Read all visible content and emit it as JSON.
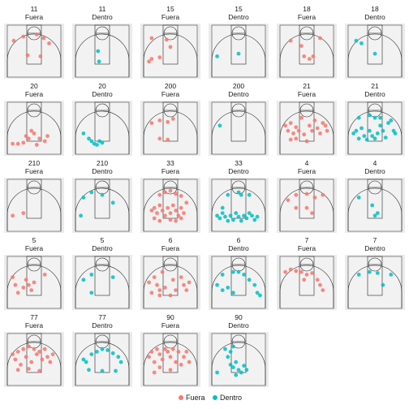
{
  "chart_data": {
    "type": "scatter",
    "title": "",
    "xlabel": "",
    "ylabel": "",
    "legend": {
      "placement": "bottom",
      "entries": [
        {
          "label": "Fuera",
          "color": "#f8766d"
        },
        {
          "label": "Dentro",
          "color": "#00bfc4"
        }
      ]
    },
    "x_range": [
      0,
      1
    ],
    "y_range": [
      0,
      1
    ],
    "grid": false,
    "panels": [
      {
        "player": "11",
        "zone": "Fuera",
        "points": [
          [
            0.12,
            0.3
          ],
          [
            0.3,
            0.22
          ],
          [
            0.55,
            0.18
          ],
          [
            0.68,
            0.25
          ],
          [
            0.78,
            0.35
          ],
          [
            0.62,
            0.6
          ],
          [
            0.38,
            0.58
          ]
        ]
      },
      {
        "player": "11",
        "zone": "Dentro",
        "points": [
          [
            0.42,
            0.5
          ],
          [
            0.44,
            0.7
          ]
        ]
      },
      {
        "player": "15",
        "zone": "Fuera",
        "points": [
          [
            0.15,
            0.25
          ],
          [
            0.43,
            0.28
          ],
          [
            0.5,
            0.42
          ],
          [
            0.15,
            0.65
          ],
          [
            0.1,
            0.7
          ],
          [
            0.3,
            0.62
          ]
        ]
      },
      {
        "player": "15",
        "zone": "Dentro",
        "points": [
          [
            0.1,
            0.6
          ],
          [
            0.5,
            0.55
          ]
        ]
      },
      {
        "player": "18",
        "zone": "Fuera",
        "points": [
          [
            0.2,
            0.3
          ],
          [
            0.4,
            0.4
          ],
          [
            0.75,
            0.25
          ],
          [
            0.45,
            0.6
          ],
          [
            0.55,
            0.65
          ],
          [
            0.62,
            0.6
          ]
        ]
      },
      {
        "player": "18",
        "zone": "Dentro",
        "points": [
          [
            0.15,
            0.3
          ],
          [
            0.25,
            0.35
          ],
          [
            0.5,
            0.55
          ]
        ]
      },
      {
        "player": "20",
        "zone": "Fuera",
        "points": [
          [
            0.1,
            0.8
          ],
          [
            0.2,
            0.8
          ],
          [
            0.3,
            0.78
          ],
          [
            0.35,
            0.65
          ],
          [
            0.4,
            0.7
          ],
          [
            0.45,
            0.55
          ],
          [
            0.5,
            0.6
          ],
          [
            0.55,
            0.82
          ],
          [
            0.6,
            0.7
          ],
          [
            0.7,
            0.75
          ],
          [
            0.75,
            0.65
          ]
        ]
      },
      {
        "player": "20",
        "zone": "Dentro",
        "points": [
          [
            0.15,
            0.6
          ],
          [
            0.25,
            0.7
          ],
          [
            0.3,
            0.75
          ],
          [
            0.35,
            0.8
          ],
          [
            0.4,
            0.82
          ],
          [
            0.45,
            0.75
          ],
          [
            0.5,
            0.78
          ]
        ]
      },
      {
        "player": "200",
        "zone": "Fuera",
        "points": [
          [
            0.15,
            0.4
          ],
          [
            0.3,
            0.35
          ],
          [
            0.45,
            0.38
          ],
          [
            0.55,
            0.32
          ],
          [
            0.3,
            0.7
          ],
          [
            0.45,
            0.72
          ]
        ]
      },
      {
        "player": "200",
        "zone": "Dentro",
        "points": [
          [
            0.15,
            0.45
          ]
        ]
      },
      {
        "player": "21",
        "zone": "Fuera",
        "points": [
          [
            0.1,
            0.45
          ],
          [
            0.15,
            0.55
          ],
          [
            0.2,
            0.4
          ],
          [
            0.25,
            0.6
          ],
          [
            0.3,
            0.48
          ],
          [
            0.35,
            0.55
          ],
          [
            0.4,
            0.3
          ],
          [
            0.45,
            0.62
          ],
          [
            0.5,
            0.75
          ],
          [
            0.55,
            0.45
          ],
          [
            0.6,
            0.55
          ],
          [
            0.65,
            0.35
          ],
          [
            0.7,
            0.5
          ],
          [
            0.75,
            0.6
          ],
          [
            0.8,
            0.4
          ],
          [
            0.85,
            0.45
          ],
          [
            0.88,
            0.55
          ],
          [
            0.3,
            0.7
          ],
          [
            0.2,
            0.72
          ]
        ]
      },
      {
        "player": "21",
        "zone": "Dentro",
        "points": [
          [
            0.1,
            0.6
          ],
          [
            0.15,
            0.55
          ],
          [
            0.2,
            0.7
          ],
          [
            0.25,
            0.5
          ],
          [
            0.3,
            0.65
          ],
          [
            0.35,
            0.72
          ],
          [
            0.4,
            0.55
          ],
          [
            0.45,
            0.65
          ],
          [
            0.5,
            0.7
          ],
          [
            0.55,
            0.6
          ],
          [
            0.6,
            0.45
          ],
          [
            0.65,
            0.55
          ],
          [
            0.7,
            0.68
          ],
          [
            0.75,
            0.4
          ],
          [
            0.8,
            0.35
          ],
          [
            0.85,
            0.55
          ],
          [
            0.88,
            0.6
          ],
          [
            0.2,
            0.3
          ],
          [
            0.4,
            0.25
          ],
          [
            0.5,
            0.3
          ],
          [
            0.6,
            0.3
          ]
        ]
      },
      {
        "player": "210",
        "zone": "Fuera",
        "points": [
          [
            0.1,
            0.7
          ],
          [
            0.3,
            0.65
          ]
        ]
      },
      {
        "player": "210",
        "zone": "Dentro",
        "points": [
          [
            0.15,
            0.35
          ],
          [
            0.3,
            0.25
          ],
          [
            0.5,
            0.3
          ],
          [
            0.7,
            0.45
          ],
          [
            0.1,
            0.7
          ]
        ]
      },
      {
        "player": "33",
        "zone": "Fuera",
        "points": [
          [
            0.15,
            0.6
          ],
          [
            0.2,
            0.55
          ],
          [
            0.25,
            0.65
          ],
          [
            0.3,
            0.5
          ],
          [
            0.35,
            0.6
          ],
          [
            0.4,
            0.7
          ],
          [
            0.45,
            0.55
          ],
          [
            0.5,
            0.65
          ],
          [
            0.55,
            0.5
          ],
          [
            0.6,
            0.6
          ],
          [
            0.65,
            0.7
          ],
          [
            0.7,
            0.55
          ],
          [
            0.75,
            0.65
          ],
          [
            0.3,
            0.3
          ],
          [
            0.4,
            0.25
          ],
          [
            0.5,
            0.22
          ],
          [
            0.6,
            0.28
          ],
          [
            0.7,
            0.32
          ],
          [
            0.8,
            0.45
          ],
          [
            0.2,
            0.75
          ],
          [
            0.3,
            0.8
          ],
          [
            0.5,
            0.78
          ],
          [
            0.6,
            0.8
          ],
          [
            0.7,
            0.75
          ]
        ]
      },
      {
        "player": "33",
        "zone": "Dentro",
        "points": [
          [
            0.1,
            0.7
          ],
          [
            0.15,
            0.75
          ],
          [
            0.2,
            0.65
          ],
          [
            0.25,
            0.72
          ],
          [
            0.3,
            0.8
          ],
          [
            0.35,
            0.7
          ],
          [
            0.4,
            0.78
          ],
          [
            0.45,
            0.65
          ],
          [
            0.5,
            0.72
          ],
          [
            0.55,
            0.8
          ],
          [
            0.6,
            0.7
          ],
          [
            0.65,
            0.75
          ],
          [
            0.7,
            0.65
          ],
          [
            0.75,
            0.7
          ],
          [
            0.8,
            0.78
          ],
          [
            0.3,
            0.3
          ],
          [
            0.5,
            0.25
          ],
          [
            0.55,
            0.3
          ],
          [
            0.7,
            0.3
          ],
          [
            0.2,
            0.55
          ],
          [
            0.85,
            0.72
          ]
        ]
      },
      {
        "player": "4",
        "zone": "Fuera",
        "points": [
          [
            0.15,
            0.4
          ],
          [
            0.3,
            0.3
          ],
          [
            0.5,
            0.28
          ],
          [
            0.65,
            0.35
          ],
          [
            0.8,
            0.3
          ],
          [
            0.5,
            0.55
          ],
          [
            0.6,
            0.65
          ],
          [
            0.3,
            0.55
          ]
        ]
      },
      {
        "player": "4",
        "zone": "Dentro",
        "points": [
          [
            0.2,
            0.35
          ],
          [
            0.45,
            0.5
          ],
          [
            0.55,
            0.65
          ],
          [
            0.5,
            0.7
          ]
        ]
      },
      {
        "player": "5",
        "zone": "Fuera",
        "points": [
          [
            0.1,
            0.4
          ],
          [
            0.15,
            0.55
          ],
          [
            0.2,
            0.7
          ],
          [
            0.3,
            0.6
          ],
          [
            0.35,
            0.45
          ],
          [
            0.4,
            0.55
          ],
          [
            0.45,
            0.65
          ],
          [
            0.5,
            0.5
          ],
          [
            0.7,
            0.35
          ]
        ]
      },
      {
        "player": "5",
        "zone": "Dentro",
        "points": [
          [
            0.15,
            0.45
          ],
          [
            0.3,
            0.35
          ],
          [
            0.7,
            0.4
          ],
          [
            0.3,
            0.7
          ]
        ]
      },
      {
        "player": "6",
        "zone": "Fuera",
        "points": [
          [
            0.1,
            0.5
          ],
          [
            0.15,
            0.7
          ],
          [
            0.2,
            0.4
          ],
          [
            0.25,
            0.55
          ],
          [
            0.3,
            0.65
          ],
          [
            0.35,
            0.3
          ],
          [
            0.4,
            0.6
          ],
          [
            0.5,
            0.75
          ],
          [
            0.55,
            0.45
          ],
          [
            0.6,
            0.65
          ],
          [
            0.7,
            0.4
          ],
          [
            0.75,
            0.55
          ],
          [
            0.8,
            0.65
          ],
          [
            0.85,
            0.5
          ],
          [
            0.3,
            0.75
          ]
        ]
      },
      {
        "player": "6",
        "zone": "Dentro",
        "points": [
          [
            0.1,
            0.55
          ],
          [
            0.2,
            0.65
          ],
          [
            0.3,
            0.6
          ],
          [
            0.4,
            0.7
          ],
          [
            0.5,
            0.3
          ],
          [
            0.6,
            0.35
          ],
          [
            0.7,
            0.45
          ],
          [
            0.8,
            0.55
          ],
          [
            0.85,
            0.7
          ],
          [
            0.2,
            0.35
          ],
          [
            0.4,
            0.3
          ],
          [
            0.9,
            0.75
          ]
        ]
      },
      {
        "player": "7",
        "zone": "Fuera",
        "points": [
          [
            0.1,
            0.3
          ],
          [
            0.2,
            0.25
          ],
          [
            0.3,
            0.28
          ],
          [
            0.4,
            0.3
          ],
          [
            0.5,
            0.35
          ],
          [
            0.6,
            0.32
          ],
          [
            0.7,
            0.45
          ],
          [
            0.75,
            0.55
          ],
          [
            0.8,
            0.65
          ],
          [
            0.45,
            0.45
          ]
        ]
      },
      {
        "player": "7",
        "zone": "Dentro",
        "points": [
          [
            0.2,
            0.35
          ],
          [
            0.4,
            0.3
          ],
          [
            0.55,
            0.32
          ],
          [
            0.8,
            0.35
          ],
          [
            0.65,
            0.55
          ]
        ]
      },
      {
        "player": "77",
        "zone": "Fuera",
        "points": [
          [
            0.1,
            0.4
          ],
          [
            0.15,
            0.5
          ],
          [
            0.2,
            0.35
          ],
          [
            0.25,
            0.6
          ],
          [
            0.3,
            0.3
          ],
          [
            0.35,
            0.45
          ],
          [
            0.4,
            0.25
          ],
          [
            0.45,
            0.55
          ],
          [
            0.5,
            0.3
          ],
          [
            0.55,
            0.4
          ],
          [
            0.6,
            0.35
          ],
          [
            0.65,
            0.5
          ],
          [
            0.7,
            0.3
          ],
          [
            0.75,
            0.45
          ],
          [
            0.8,
            0.55
          ],
          [
            0.85,
            0.4
          ],
          [
            0.2,
            0.7
          ],
          [
            0.4,
            0.68
          ],
          [
            0.6,
            0.72
          ]
        ]
      },
      {
        "player": "77",
        "zone": "Dentro",
        "points": [
          [
            0.15,
            0.5
          ],
          [
            0.2,
            0.55
          ],
          [
            0.3,
            0.4
          ],
          [
            0.4,
            0.35
          ],
          [
            0.5,
            0.3
          ],
          [
            0.6,
            0.32
          ],
          [
            0.7,
            0.38
          ],
          [
            0.8,
            0.45
          ],
          [
            0.85,
            0.55
          ],
          [
            0.25,
            0.7
          ],
          [
            0.75,
            0.72
          ],
          [
            0.5,
            0.72
          ]
        ]
      },
      {
        "player": "90",
        "zone": "Fuera",
        "points": [
          [
            0.1,
            0.45
          ],
          [
            0.15,
            0.35
          ],
          [
            0.2,
            0.55
          ],
          [
            0.25,
            0.3
          ],
          [
            0.3,
            0.4
          ],
          [
            0.35,
            0.5
          ],
          [
            0.4,
            0.3
          ],
          [
            0.45,
            0.35
          ],
          [
            0.5,
            0.45
          ],
          [
            0.55,
            0.3
          ],
          [
            0.6,
            0.55
          ],
          [
            0.65,
            0.35
          ],
          [
            0.7,
            0.6
          ],
          [
            0.75,
            0.45
          ],
          [
            0.8,
            0.35
          ],
          [
            0.85,
            0.55
          ],
          [
            0.3,
            0.65
          ],
          [
            0.5,
            0.7
          ],
          [
            0.2,
            0.75
          ]
        ]
      },
      {
        "player": "90",
        "zone": "Dentro",
        "points": [
          [
            0.25,
            0.3
          ],
          [
            0.3,
            0.45
          ],
          [
            0.35,
            0.6
          ],
          [
            0.4,
            0.65
          ],
          [
            0.45,
            0.55
          ],
          [
            0.5,
            0.7
          ],
          [
            0.55,
            0.75
          ],
          [
            0.6,
            0.62
          ],
          [
            0.65,
            0.7
          ],
          [
            0.35,
            0.35
          ],
          [
            0.4,
            0.25
          ],
          [
            0.1,
            0.75
          ],
          [
            0.45,
            0.8
          ]
        ]
      }
    ]
  }
}
